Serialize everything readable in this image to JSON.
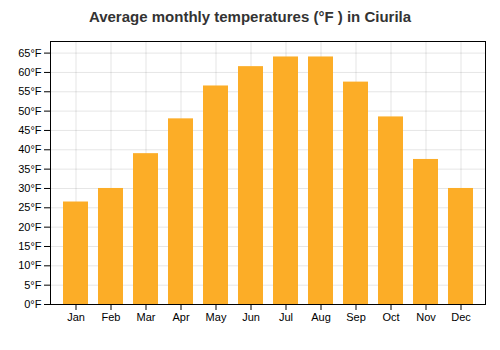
{
  "chart_data": {
    "type": "bar",
    "title": "Average monthly temperatures (°F ) in Ciurila",
    "categories": [
      "Jan",
      "Feb",
      "Mar",
      "Apr",
      "May",
      "Jun",
      "Jul",
      "Aug",
      "Sep",
      "Oct",
      "Nov",
      "Dec"
    ],
    "values": [
      26.5,
      30.0,
      39.0,
      48.0,
      56.5,
      61.5,
      64.0,
      64.0,
      57.5,
      48.5,
      37.5,
      30.0
    ],
    "color": "#FCAD27",
    "ylim": [
      0,
      68
    ],
    "yticks": [
      {
        "value": 0,
        "label": "0°F"
      },
      {
        "value": 5,
        "label": "5°F"
      },
      {
        "value": 10,
        "label": "10°F"
      },
      {
        "value": 15,
        "label": "15°F"
      },
      {
        "value": 20,
        "label": "20°F"
      },
      {
        "value": 25,
        "label": "25°F"
      },
      {
        "value": 30,
        "label": "30°F"
      },
      {
        "value": 35,
        "label": "35°F"
      },
      {
        "value": 40,
        "label": "40°F"
      },
      {
        "value": 45,
        "label": "45°F"
      },
      {
        "value": 50,
        "label": "50°F"
      },
      {
        "value": 55,
        "label": "55°F"
      },
      {
        "value": 60,
        "label": "60°F"
      },
      {
        "value": 65,
        "label": "65°F"
      }
    ],
    "grid": true
  }
}
